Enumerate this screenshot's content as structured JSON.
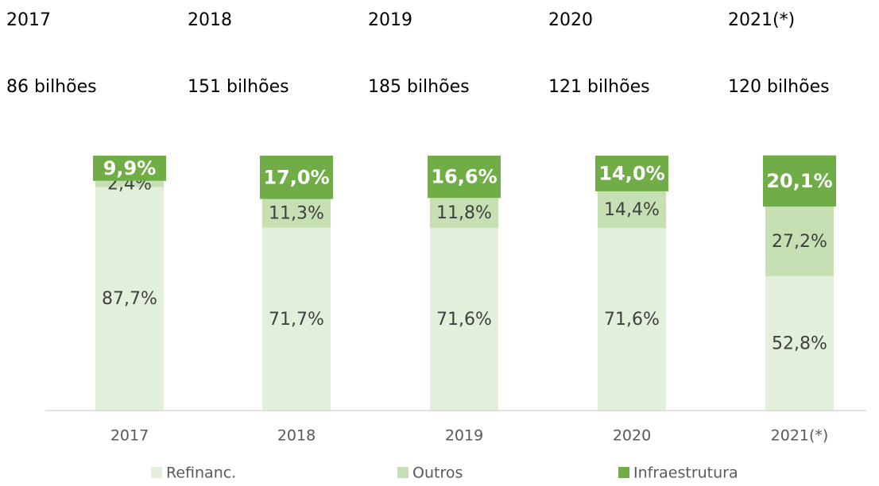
{
  "chart_data": {
    "type": "stacked_bar",
    "header": [
      {
        "year": "2017",
        "total": "86 bilhões"
      },
      {
        "year": "2018",
        "total": "151 bilhões"
      },
      {
        "year": "2019",
        "total": "185 bilhões"
      },
      {
        "year": "2020",
        "total": "121 bilhões"
      },
      {
        "year": "2021(*)",
        "total": "120 bilhões"
      }
    ],
    "categories": [
      "2017",
      "2018",
      "2019",
      "2020",
      "2021(*)"
    ],
    "series": [
      {
        "name": "Refinanc.",
        "color": "#e2efda",
        "values": [
          87.7,
          71.7,
          71.6,
          71.6,
          52.8
        ],
        "value_labels": [
          "87,7%",
          "71,7%",
          "71,6%",
          "71,6%",
          "52,8%"
        ]
      },
      {
        "name": "Outros",
        "color": "#c6e0b4",
        "values": [
          2.4,
          11.3,
          11.8,
          14.4,
          27.2
        ],
        "value_labels": [
          "2,4%",
          "11,3%",
          "11,8%",
          "14,4%",
          "27,2%"
        ]
      },
      {
        "name": "Infraestrutura",
        "color": "#70ad47",
        "values": [
          9.9,
          17.0,
          16.6,
          14.0,
          20.1
        ],
        "value_labels": [
          "9,9%",
          "17,0%",
          "16,6%",
          "14,0%",
          "20,1%"
        ]
      }
    ],
    "ylim": [
      0,
      100
    ]
  }
}
